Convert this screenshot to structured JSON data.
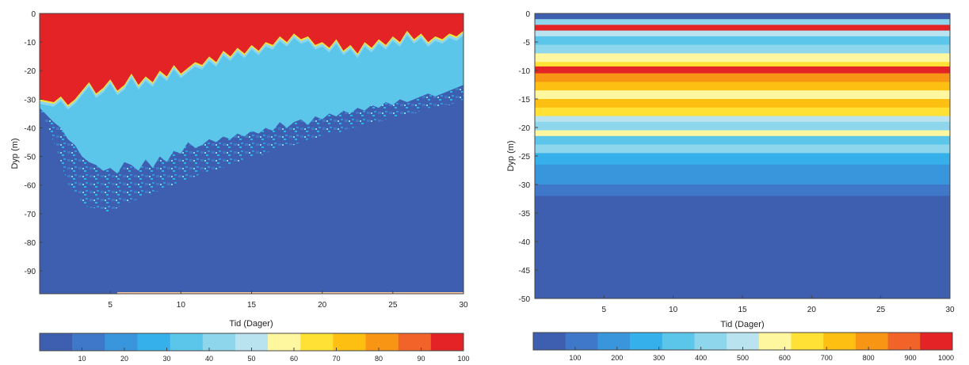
{
  "palette": [
    "#3e5fb0",
    "#3f78c8",
    "#3a96dc",
    "#36b0ea",
    "#5bc6ea",
    "#8dd6ec",
    "#b9e4ef",
    "#fff7a0",
    "#ffe135",
    "#fcbf12",
    "#f99515",
    "#f2632a",
    "#e42326"
  ],
  "chart_data": [
    {
      "type": "heatmap",
      "xlabel": "Tid (Dager)",
      "ylabel": "Dyp (m)",
      "xlim": [
        0,
        30
      ],
      "ylim": [
        -98,
        0
      ],
      "xticks": [
        5,
        10,
        15,
        20,
        25,
        30
      ],
      "yticks": [
        0,
        -10,
        -20,
        -30,
        -40,
        -50,
        -60,
        -70,
        -80,
        -90
      ],
      "grid": false,
      "colorbar": {
        "min": 0,
        "max": 100,
        "ticks": [
          10,
          20,
          30,
          40,
          50,
          60,
          70,
          80,
          90,
          100
        ]
      },
      "boundaries": {
        "x": [
          0,
          1,
          1.5,
          2,
          2.5,
          3,
          3.5,
          4,
          4.5,
          5,
          5.5,
          6,
          6.5,
          7,
          7.5,
          8,
          8.5,
          9,
          9.5,
          10,
          10.5,
          11,
          11.5,
          12,
          12.5,
          13,
          13.5,
          14,
          14.5,
          15,
          15.5,
          16,
          16.5,
          17,
          17.5,
          18,
          18.5,
          19,
          19.5,
          20,
          20.5,
          21,
          21.5,
          22,
          22.5,
          23,
          23.5,
          24,
          24.5,
          25,
          25.5,
          26,
          26.5,
          27,
          27.5,
          28,
          28.5,
          29,
          29.5,
          30
        ],
        "top_red_edge": [
          -30,
          -31,
          -29,
          -32,
          -30,
          -27,
          -24,
          -28,
          -26,
          -23,
          -27,
          -25,
          -21,
          -25,
          -22,
          -24,
          -20,
          -22,
          -18,
          -21,
          -19,
          -17,
          -18,
          -15,
          -17,
          -13,
          -15,
          -12,
          -14,
          -11,
          -13,
          -10,
          -11,
          -8,
          -10,
          -7,
          -9,
          -8,
          -11,
          -10,
          -12,
          -9,
          -13,
          -11,
          -14,
          -10,
          -12,
          -9,
          -11,
          -8,
          -10,
          -6,
          -9,
          -7,
          -10,
          -8,
          -9,
          -7,
          -8,
          -6
        ],
        "light_blue_bottom": [
          -33,
          -38,
          -40,
          -44,
          -46,
          -50,
          -52,
          -53,
          -55,
          -54,
          -56,
          -52,
          -53,
          -55,
          -51,
          -54,
          -50,
          -52,
          -48,
          -49,
          -45,
          -47,
          -46,
          -44,
          -45,
          -43,
          -44,
          -42,
          -43,
          -41,
          -42,
          -40,
          -41,
          -38,
          -40,
          -38,
          -37,
          -39,
          -36,
          -37,
          -35,
          -36,
          -34,
          -35,
          -33,
          -34,
          -32,
          -33,
          -31,
          -32,
          -30,
          -31,
          -30,
          -29,
          -28,
          -29,
          -28,
          -27,
          -26,
          -25
        ],
        "scatter_bottom": [
          -33,
          -45,
          -52,
          -60,
          -63,
          -66,
          -68,
          -68,
          -70,
          -69,
          -68,
          -66,
          -66,
          -65,
          -64,
          -63,
          -62,
          -61,
          -60,
          -59,
          -58,
          -57,
          -56,
          -55,
          -55,
          -54,
          -53,
          -52,
          -51,
          -50,
          -50,
          -49,
          -48,
          -47,
          -46,
          -46,
          -45,
          -44,
          -44,
          -43,
          -42,
          -42,
          -41,
          -40,
          -40,
          -39,
          -38,
          -38,
          -37,
          -36,
          -36,
          -35,
          -35,
          -34,
          -33,
          -33,
          -32,
          -32,
          -31,
          -30
        ]
      }
    },
    {
      "type": "heatmap",
      "xlabel": "Tid (Dager)",
      "ylabel": "Dyp (m)",
      "xlim": [
        0,
        30
      ],
      "ylim": [
        -50,
        0
      ],
      "xticks": [
        5,
        10,
        15,
        20,
        25,
        30
      ],
      "yticks": [
        0,
        -5,
        -10,
        -15,
        -20,
        -25,
        -30,
        -35,
        -40,
        -45,
        -50
      ],
      "grid": false,
      "colorbar": {
        "min": 0,
        "max": 1000,
        "ticks": [
          100,
          200,
          300,
          400,
          500,
          600,
          700,
          800,
          900,
          1000
        ]
      },
      "bands": [
        {
          "from": 0,
          "to": -1,
          "value": 20
        },
        {
          "from": -1,
          "to": -2,
          "value": 420
        },
        {
          "from": -2,
          "to": -3,
          "value": 970
        },
        {
          "from": -3,
          "to": -4,
          "value": 530
        },
        {
          "from": -4,
          "to": -5.5,
          "value": 330
        },
        {
          "from": -5.5,
          "to": -7,
          "value": 420
        },
        {
          "from": -7,
          "to": -8.5,
          "value": 560
        },
        {
          "from": -8.5,
          "to": -9.3,
          "value": 640
        },
        {
          "from": -9.3,
          "to": -10.5,
          "value": 970
        },
        {
          "from": -10.5,
          "to": -12,
          "value": 780
        },
        {
          "from": -12,
          "to": -13.5,
          "value": 700
        },
        {
          "from": -13.5,
          "to": -15,
          "value": 600
        },
        {
          "from": -15,
          "to": -16.5,
          "value": 700
        },
        {
          "from": -16.5,
          "to": -18,
          "value": 640
        },
        {
          "from": -18,
          "to": -19,
          "value": 530
        },
        {
          "from": -19,
          "to": -20.5,
          "value": 420
        },
        {
          "from": -20.5,
          "to": -21.5,
          "value": 540
        },
        {
          "from": -21.5,
          "to": -23,
          "value": 350
        },
        {
          "from": -23,
          "to": -24.5,
          "value": 420
        },
        {
          "from": -24.5,
          "to": -26.5,
          "value": 250
        },
        {
          "from": -26.5,
          "to": -28.5,
          "value": 230
        },
        {
          "from": -28.5,
          "to": -30,
          "value": 190
        },
        {
          "from": -30,
          "to": -32,
          "value": 150
        },
        {
          "from": -32,
          "to": -50,
          "value": 20
        }
      ]
    }
  ]
}
